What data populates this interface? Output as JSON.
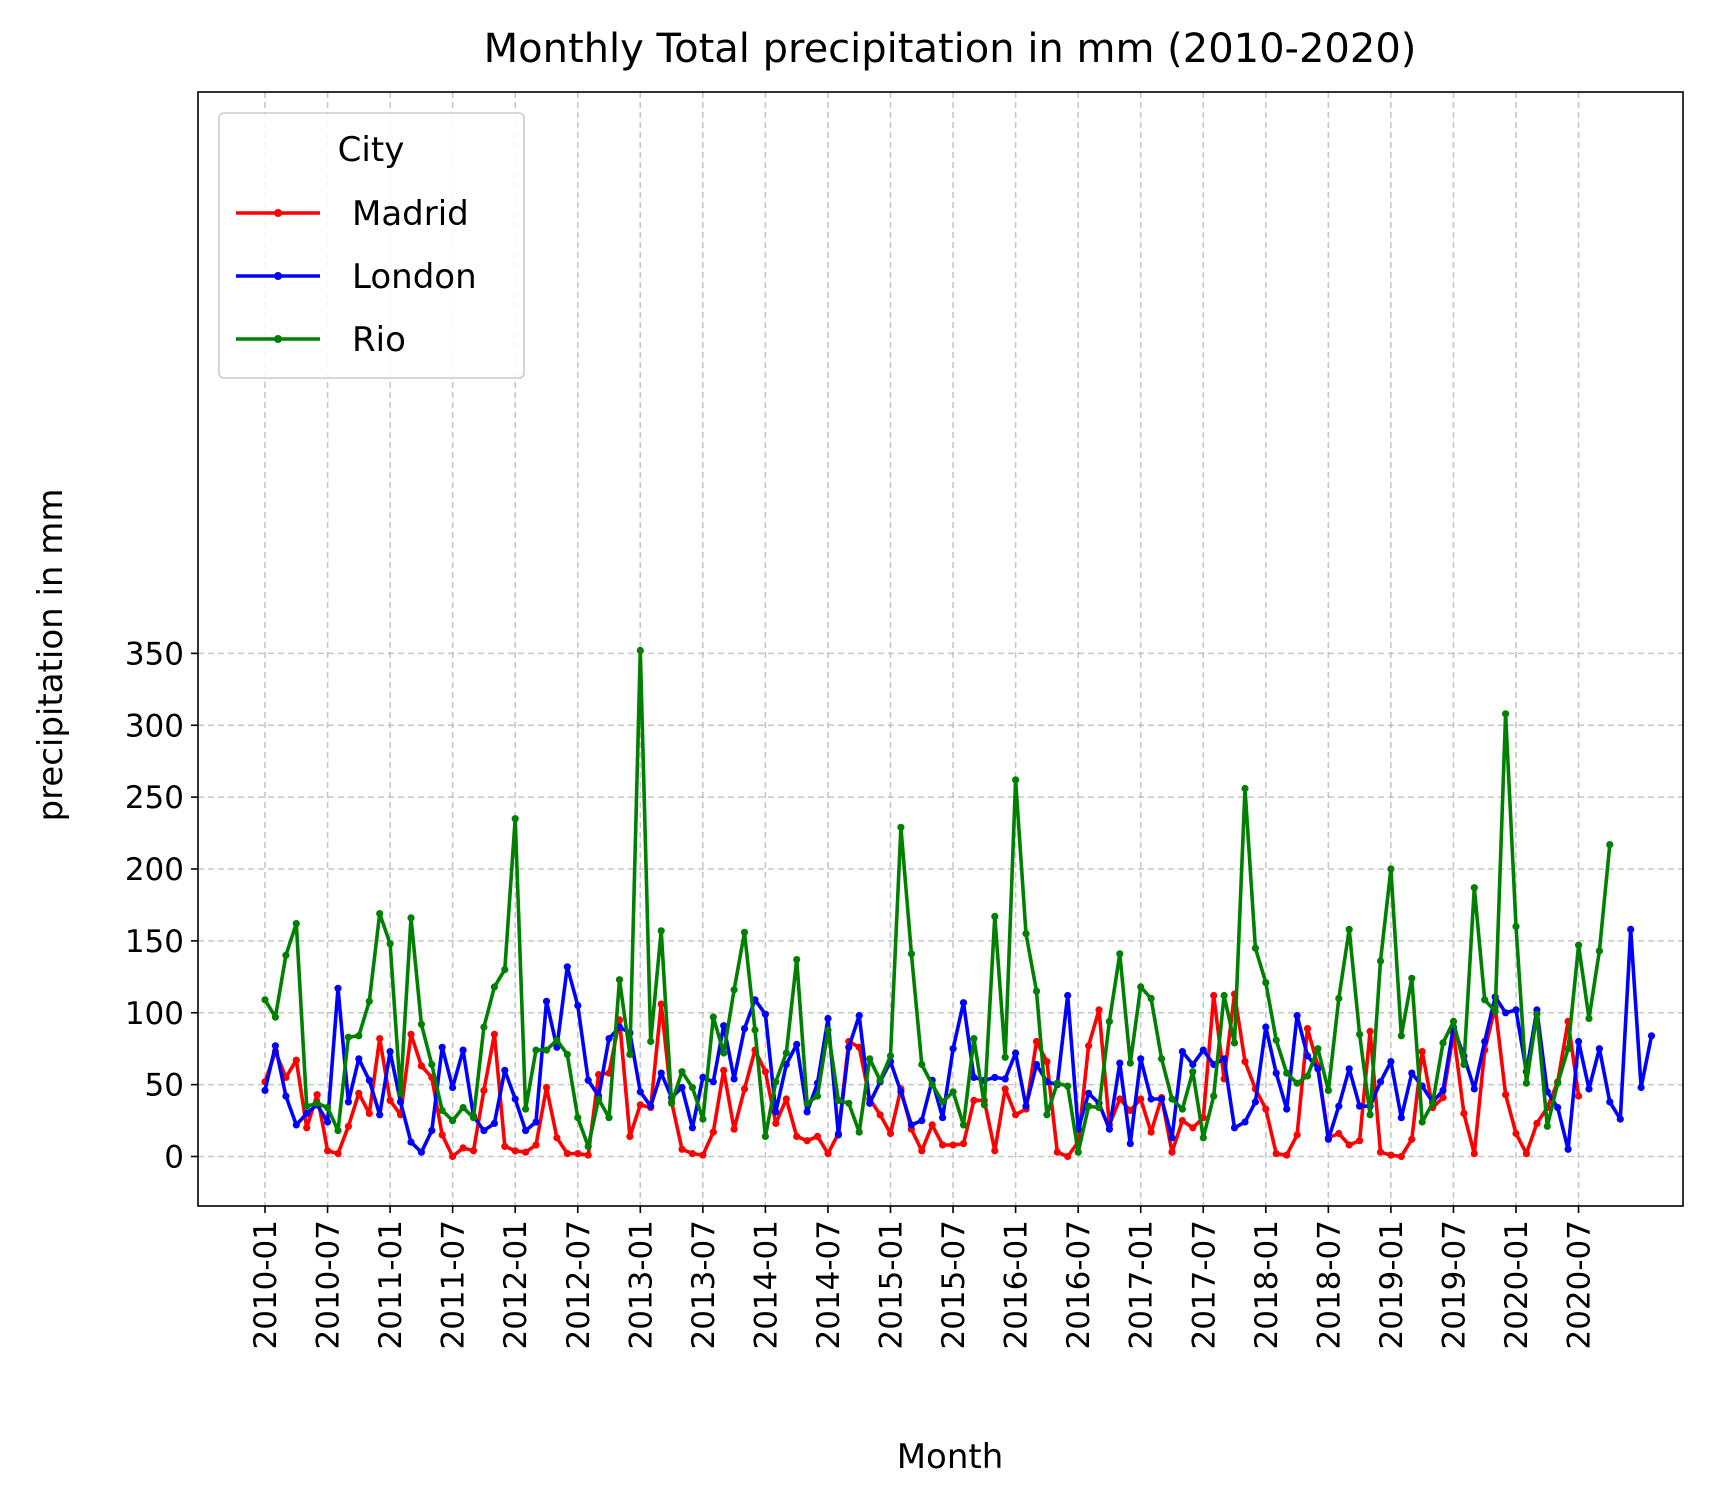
{
  "chart_data": {
    "type": "line",
    "title": "Monthly Total precipitation in mm (2010-2020)",
    "xlabel": "Month",
    "ylabel": "precipitation in mm",
    "ylim": [
      -17,
      370
    ],
    "y_ticks": [
      0,
      50,
      100,
      150,
      200,
      250,
      300,
      350
    ],
    "x_ticks": [
      "2010-01",
      "2010-07",
      "2011-01",
      "2011-07",
      "2012-01",
      "2012-07",
      "2013-01",
      "2013-07",
      "2014-01",
      "2014-07",
      "2015-01",
      "2015-07",
      "2016-01",
      "2016-07",
      "2017-01",
      "2017-07",
      "2018-01",
      "2018-07",
      "2019-01",
      "2019-07",
      "2020-01",
      "2020-07"
    ],
    "x_start": "2010-01",
    "grid": true,
    "legend": {
      "title": "City",
      "placement": "top-left"
    },
    "series": [
      {
        "name": "Madrid",
        "color": "#ff0000",
        "values": [
          52,
          73,
          55,
          67,
          20,
          43,
          4,
          2,
          21,
          44,
          30,
          82,
          39,
          29,
          85,
          63,
          55,
          15,
          0,
          6,
          4,
          46,
          85,
          7,
          4,
          3,
          8,
          48,
          13,
          2,
          2,
          1,
          57,
          58,
          95,
          14,
          36,
          34,
          106,
          38,
          5,
          2,
          1,
          17,
          60,
          19,
          47,
          74,
          59,
          23,
          40,
          14,
          11,
          14,
          2,
          16,
          80,
          76,
          40,
          29,
          16,
          47,
          19,
          4,
          22,
          8,
          8,
          9,
          39,
          39,
          4,
          47,
          29,
          33,
          80,
          66,
          3,
          0,
          10,
          77,
          102,
          22,
          40,
          32,
          40,
          17,
          41,
          3,
          25,
          20,
          27,
          112,
          54,
          113,
          66,
          47,
          33,
          2,
          1,
          15,
          89,
          63,
          13,
          16,
          8,
          11,
          87,
          3,
          1,
          0,
          12,
          73,
          34,
          41,
          86,
          30,
          2,
          74,
          104,
          43,
          16,
          2,
          23,
          34,
          52,
          94,
          42
        ]
      },
      {
        "name": "London",
        "color": "#0000ff",
        "values": [
          46,
          77,
          42,
          22,
          30,
          36,
          24,
          117,
          38,
          68,
          53,
          29,
          73,
          38,
          10,
          3,
          18,
          76,
          48,
          74,
          28,
          18,
          23,
          60,
          40,
          18,
          24,
          108,
          76,
          132,
          105,
          53,
          42,
          82,
          90,
          86,
          45,
          35,
          58,
          41,
          48,
          20,
          55,
          52,
          91,
          54,
          89,
          109,
          99,
          31,
          64,
          78,
          31,
          51,
          96,
          15,
          76,
          98,
          37,
          52,
          66,
          45,
          22,
          25,
          53,
          27,
          75,
          107,
          55,
          53,
          55,
          54,
          72,
          35,
          64,
          52,
          50,
          112,
          19,
          44,
          37,
          19,
          65,
          9,
          68,
          40,
          40,
          13,
          73,
          64,
          74,
          64,
          68,
          20,
          24,
          38,
          90,
          58,
          33,
          98,
          70,
          61,
          12,
          35,
          61,
          35,
          35,
          52,
          66,
          27,
          58,
          49,
          38,
          46,
          90,
          70,
          47,
          80,
          111,
          100,
          102,
          59,
          102,
          45,
          34,
          5,
          80,
          47,
          75,
          38,
          26,
          158,
          48,
          84
        ]
      },
      {
        "name": "Rio",
        "color": "#008000",
        "values": [
          109,
          97,
          140,
          162,
          35,
          37,
          34,
          18,
          83,
          84,
          108,
          169,
          148,
          44,
          166,
          92,
          64,
          32,
          25,
          34,
          27,
          90,
          118,
          130,
          235,
          33,
          74,
          74,
          81,
          71,
          27,
          7,
          40,
          27,
          123,
          71,
          352,
          80,
          157,
          37,
          59,
          48,
          26,
          97,
          72,
          116,
          156,
          88,
          14,
          52,
          72,
          137,
          37,
          42,
          88,
          39,
          37,
          17,
          68,
          53,
          70,
          229,
          141,
          64,
          50,
          38,
          45,
          22,
          82,
          36,
          167,
          69,
          262,
          155,
          115,
          29,
          51,
          49,
          3,
          35,
          34,
          94,
          141,
          65,
          118,
          110,
          68,
          40,
          33,
          59,
          13,
          42,
          112,
          79,
          256,
          145,
          121,
          81,
          58,
          51,
          56,
          75,
          46,
          110,
          158,
          85,
          29,
          136,
          200,
          84,
          124,
          24,
          37,
          79,
          94,
          64,
          187,
          109,
          101,
          308,
          160,
          51,
          99,
          21,
          51,
          75,
          147,
          96,
          143,
          217
        ]
      }
    ]
  }
}
